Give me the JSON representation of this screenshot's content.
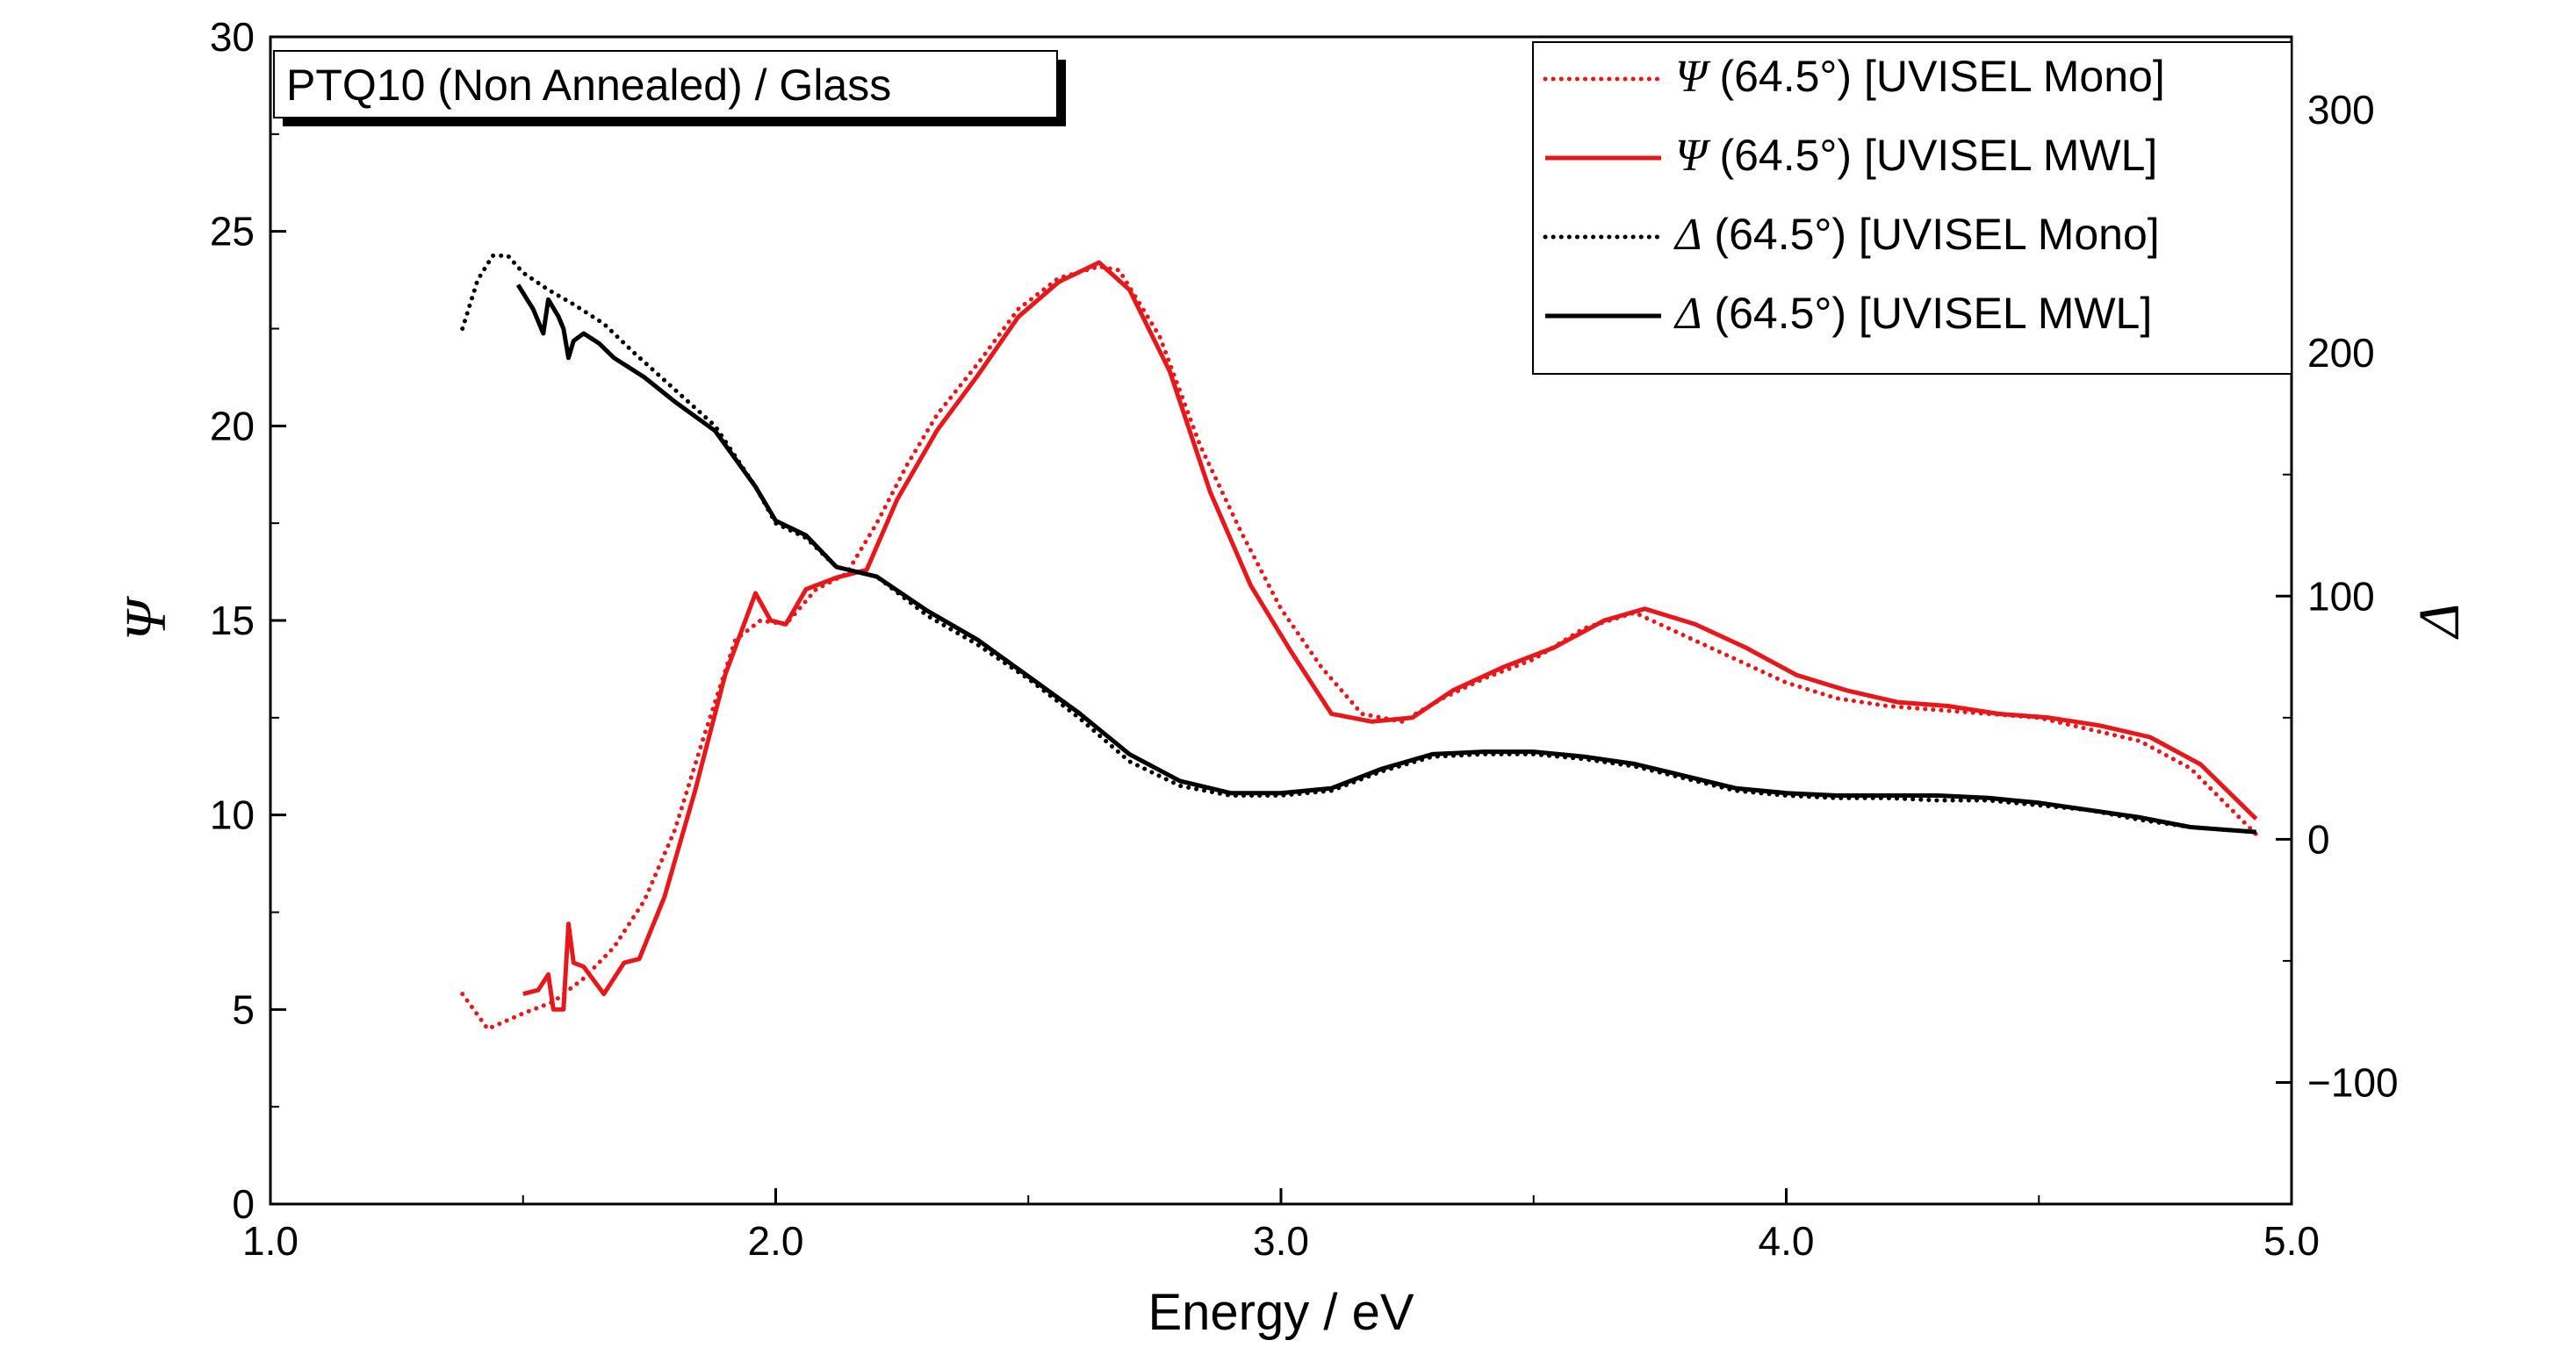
{
  "chart_data": {
    "type": "line",
    "sample_label": "PTQ10 (Non Annealed) / Glass",
    "xlabel": "Energy / eV",
    "ylabel_left": "Ψ",
    "ylabel_right": "Δ",
    "xlim": [
      1.0,
      5.0
    ],
    "ylim_left": [
      0,
      30
    ],
    "ylim_right": [
      -150,
      330
    ],
    "x_ticks": [
      "1.0",
      "2.0",
      "3.0",
      "4.0",
      "5.0"
    ],
    "x_tick_values": [
      1.0,
      2.0,
      3.0,
      4.0,
      5.0
    ],
    "y_left_ticks": [
      "0",
      "5",
      "10",
      "15",
      "20",
      "25",
      "30"
    ],
    "y_left_tick_values": [
      0,
      5,
      10,
      15,
      20,
      25,
      30
    ],
    "y_right_ticks": [
      "−100",
      "0",
      "100",
      "200",
      "300"
    ],
    "y_right_tick_values": [
      -100,
      0,
      100,
      200,
      300
    ],
    "grid": false,
    "legend_position": "top-right",
    "colors": {
      "psi": "#e8171a",
      "delta": "#000000"
    },
    "series": [
      {
        "name": "Ψ (64.5°) [UVISEL Mono]",
        "symbol": "Ψ",
        "label_rest": " (64.5°) [UVISEL Mono]",
        "axis": "left",
        "color": "#e8171a",
        "dash": "dotted",
        "x": [
          1.38,
          1.43,
          1.5,
          1.56,
          1.62,
          1.68,
          1.74,
          1.8,
          1.86,
          1.92,
          1.97,
          2.02,
          2.08,
          2.14,
          2.2,
          2.26,
          2.32,
          2.4,
          2.48,
          2.56,
          2.64,
          2.68,
          2.76,
          2.84,
          2.92,
          3.0,
          3.08,
          3.16,
          3.24,
          3.32,
          3.4,
          3.5,
          3.6,
          3.7,
          3.8,
          3.9,
          4.0,
          4.1,
          4.2,
          4.3,
          4.4,
          4.5,
          4.6,
          4.7,
          4.8,
          4.93
        ],
        "y": [
          5.4,
          4.5,
          4.9,
          5.2,
          5.8,
          6.6,
          7.8,
          9.6,
          12.1,
          14.5,
          15.0,
          14.9,
          15.8,
          16.2,
          17.5,
          19.0,
          20.3,
          21.6,
          23.0,
          23.8,
          24.1,
          24.0,
          22.3,
          19.5,
          17.3,
          15.3,
          13.8,
          12.6,
          12.4,
          13.0,
          13.5,
          14.0,
          14.8,
          15.2,
          14.6,
          14.0,
          13.4,
          13.0,
          12.8,
          12.7,
          12.6,
          12.5,
          12.2,
          11.9,
          11.2,
          9.5
        ]
      },
      {
        "name": "Ψ (64.5°) [UVISEL MWL]",
        "symbol": "Ψ",
        "label_rest": " (64.5°) [UVISEL MWL]",
        "axis": "left",
        "color": "#e8171a",
        "dash": "solid",
        "x": [
          1.5,
          1.53,
          1.55,
          1.56,
          1.58,
          1.59,
          1.6,
          1.62,
          1.66,
          1.7,
          1.73,
          1.78,
          1.84,
          1.9,
          1.96,
          1.99,
          2.02,
          2.06,
          2.12,
          2.18,
          2.24,
          2.32,
          2.4,
          2.48,
          2.56,
          2.64,
          2.7,
          2.78,
          2.86,
          2.94,
          3.02,
          3.1,
          3.18,
          3.26,
          3.34,
          3.44,
          3.54,
          3.64,
          3.72,
          3.82,
          3.92,
          4.02,
          4.12,
          4.22,
          4.32,
          4.42,
          4.52,
          4.62,
          4.72,
          4.82,
          4.93
        ],
        "y": [
          5.4,
          5.5,
          5.9,
          5.0,
          5.0,
          7.2,
          6.2,
          6.1,
          5.4,
          6.2,
          6.3,
          7.9,
          10.6,
          13.6,
          15.7,
          15.0,
          14.9,
          15.8,
          16.1,
          16.3,
          18.1,
          19.9,
          21.3,
          22.8,
          23.7,
          24.2,
          23.5,
          21.4,
          18.3,
          15.9,
          14.2,
          12.6,
          12.4,
          12.5,
          13.2,
          13.8,
          14.3,
          15.0,
          15.3,
          14.9,
          14.3,
          13.6,
          13.2,
          12.9,
          12.8,
          12.6,
          12.5,
          12.3,
          12.0,
          11.3,
          9.9
        ]
      },
      {
        "name": "Δ (64.5°) [UVISEL Mono]",
        "symbol": "Δ",
        "label_rest": " (64.5°) [UVISEL Mono]",
        "axis": "right",
        "color": "#000000",
        "dash": "dotted",
        "x": [
          1.38,
          1.41,
          1.44,
          1.47,
          1.5,
          1.55,
          1.6,
          1.66,
          1.72,
          1.8,
          1.88,
          1.96,
          2.0,
          2.06,
          2.12,
          2.2,
          2.3,
          2.4,
          2.5,
          2.6,
          2.7,
          2.8,
          2.9,
          3.0,
          3.1,
          3.2,
          3.3,
          3.4,
          3.5,
          3.6,
          3.7,
          3.8,
          3.9,
          4.0,
          4.1,
          4.2,
          4.3,
          4.4,
          4.5,
          4.6,
          4.7,
          4.8,
          4.93
        ],
        "y": [
          210,
          230,
          240,
          240,
          233,
          226,
          220,
          212,
          200,
          185,
          170,
          145,
          130,
          124,
          112,
          108,
          92,
          80,
          66,
          50,
          32,
          22,
          18,
          18,
          20,
          28,
          34,
          35,
          35,
          33,
          30,
          25,
          20,
          18,
          17,
          17,
          16,
          16,
          14,
          12,
          8,
          5,
          3
        ]
      },
      {
        "name": "Δ (64.5°) [UVISEL MWL]",
        "symbol": "Δ",
        "label_rest": " (64.5°) [UVISEL MWL]",
        "axis": "right",
        "color": "#000000",
        "dash": "solid",
        "x": [
          1.49,
          1.52,
          1.54,
          1.55,
          1.57,
          1.58,
          1.59,
          1.6,
          1.62,
          1.65,
          1.68,
          1.74,
          1.8,
          1.88,
          1.96,
          2.0,
          2.06,
          2.12,
          2.2,
          2.3,
          2.4,
          2.5,
          2.6,
          2.7,
          2.8,
          2.9,
          3.0,
          3.1,
          3.2,
          3.3,
          3.4,
          3.5,
          3.6,
          3.7,
          3.8,
          3.9,
          4.0,
          4.1,
          4.2,
          4.3,
          4.4,
          4.5,
          4.6,
          4.7,
          4.8,
          4.93
        ],
        "y": [
          228,
          218,
          208,
          222,
          215,
          210,
          198,
          205,
          208,
          204,
          198,
          190,
          180,
          168,
          145,
          131,
          125,
          112,
          108,
          94,
          82,
          67,
          52,
          35,
          24,
          19,
          19,
          21,
          29,
          35,
          36,
          36,
          34,
          31,
          26,
          21,
          19,
          18,
          18,
          18,
          17,
          15,
          12,
          9,
          5,
          3
        ]
      }
    ]
  }
}
